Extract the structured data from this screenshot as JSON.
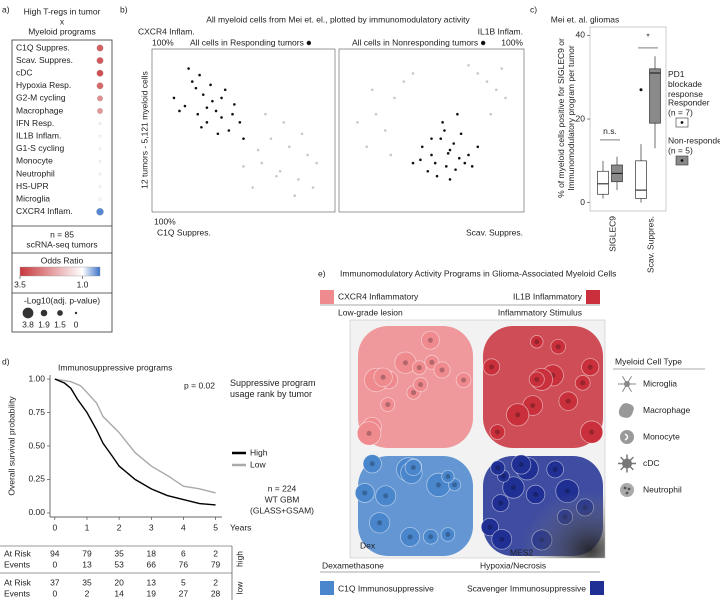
{
  "panel_labels": [
    "a)",
    "b)",
    "c)",
    "d)",
    "e)"
  ],
  "chart_data": [
    {
      "type": "dot",
      "title": [
        "High T-regs in tumor",
        "x",
        "Myeloid programs"
      ],
      "categories": [
        "C1Q Suppres.",
        "Scav. Suppres.",
        "cDC",
        "Hypoxia Resp.",
        "G2-M cycling",
        "Macrophage",
        "IFN Resp.",
        "IL1B Inflam.",
        "G1-S cycling",
        "Monocyte",
        "Neutrophil",
        "HS-UPR",
        "Microglia",
        "CXCR4 Inflam."
      ],
      "values": [
        3.0,
        3.1,
        3.2,
        2.9,
        2.4,
        2.3,
        1.1,
        1.0,
        1.0,
        1.0,
        1.0,
        1.0,
        1.0,
        0.4
      ],
      "sizes": [
        1.9,
        1.9,
        1.9,
        1.9,
        1.5,
        1.5,
        0,
        0,
        0,
        0,
        0,
        0,
        0,
        2.2
      ],
      "annotations": [
        "n = 85",
        "scRNA-seq tumors"
      ],
      "colorbar_title": "Odds Ratio",
      "clim": [
        0.3,
        3.5
      ],
      "colorbar_ticks": [
        3.5,
        {
          "value": 1,
          "label": "1.0"
        }
      ],
      "colorbar_colors": [
        "#c8383c",
        "#ffffff",
        "#3b73c9"
      ],
      "size_title": "-Log10(adj. p-value)",
      "size_ticks": [
        3.8,
        1.9,
        1.5,
        0
      ]
    },
    {
      "type": "scatter",
      "title": "All myeloid cells from Mei et. el., plotted by immunomodulatory activity",
      "y_label": "12 tumors - 5,121 myeloid cells",
      "y_label_top": "CXCR4 Inflam.",
      "y_max_label": "100%",
      "x_label": "C1Q Suppres.",
      "x_max_label": "100%",
      "annotation": "All cells in Responding tumors",
      "xlim": [
        0,
        100
      ],
      "ylim": [
        0,
        100
      ],
      "series": [
        {
          "color": "#c8c8c8",
          "x": [
            60,
            70,
            75,
            80,
            65,
            85,
            55,
            90,
            72,
            62,
            78,
            68,
            58,
            82,
            88,
            50
          ],
          "values": [
            30,
            25,
            40,
            20,
            45,
            35,
            15,
            30,
            55,
            60,
            10,
            22,
            38,
            48,
            15,
            28
          ]
        },
        {
          "color": "#111111",
          "x": [
            12,
            18,
            22,
            25,
            28,
            30,
            33,
            35,
            38,
            40,
            42,
            45,
            20,
            27,
            32,
            36,
            44,
            48,
            15,
            24,
            30,
            38,
            50,
            26
          ],
          "values": [
            70,
            65,
            80,
            60,
            72,
            55,
            68,
            62,
            58,
            75,
            50,
            66,
            88,
            52,
            78,
            48,
            60,
            55,
            62,
            76,
            64,
            70,
            45,
            84
          ]
        }
      ]
    },
    {
      "type": "scatter",
      "y_label_top": "IL1B Inflam.",
      "y_max_label": "100%",
      "x_label": "Scav. Suppres.",
      "annotation": "All cells in Nonresponding tumors",
      "xlim": [
        0,
        100
      ],
      "ylim": [
        0,
        100
      ],
      "series": [
        {
          "color": "#c8c8c8",
          "x": [
            20,
            30,
            25,
            80,
            85,
            75,
            15,
            35,
            90,
            70,
            10,
            28,
            82,
            40,
            18,
            88
          ],
          "values": [
            60,
            70,
            50,
            80,
            75,
            85,
            40,
            80,
            70,
            90,
            55,
            35,
            60,
            85,
            75,
            88
          ]
        },
        {
          "color": "#111111",
          "x": [
            45,
            50,
            55,
            60,
            52,
            58,
            62,
            65,
            48,
            57,
            70,
            53,
            66,
            44,
            60,
            75,
            56,
            63,
            68,
            50,
            59,
            72,
            40,
            64
          ],
          "values": [
            40,
            35,
            45,
            38,
            30,
            28,
            42,
            33,
            25,
            50,
            35,
            22,
            48,
            32,
            20,
            40,
            55,
            26,
            30,
            45,
            36,
            28,
            30,
            60
          ]
        }
      ]
    },
    {
      "type": "box",
      "title": "Mei et. al. gliomas",
      "y_label": "% of myeloid cells positive for SIGLEC9 or Immunomodulatory program per tumor",
      "ylim": [
        -2,
        42
      ],
      "yticks": [
        0,
        20,
        40
      ],
      "categories": [
        "SIGLEC9",
        "Scav. Suppres."
      ],
      "series": [
        {
          "name": "Responder",
          "color": "#ffffff",
          "min": [
            1,
            0
          ],
          "q1": [
            2,
            1
          ],
          "median": [
            4.5,
            3
          ],
          "q3": [
            7.5,
            10
          ],
          "max": [
            10,
            14
          ],
          "outliers": [
            [],
            [
              27
            ]
          ]
        },
        {
          "name": "Non-responder",
          "color": "#8a8a8a",
          "min": [
            3,
            13
          ],
          "q1": [
            5,
            19
          ],
          "median": [
            7,
            31
          ],
          "q3": [
            9,
            32
          ],
          "max": [
            11,
            35
          ],
          "outliers": [
            [],
            []
          ]
        }
      ],
      "annotations": [
        "n.s.",
        "*"
      ],
      "legend_title": "PD1 blockade response",
      "legend_notes": [
        "(n = 7)",
        "(n = 5)"
      ]
    },
    {
      "type": "line",
      "title": "Immunosuppressive programs",
      "annotation": "p = 0.02",
      "legend_title": "Suppressive program usage rank by tumor",
      "notes": [
        "n = 224",
        "WT GBM",
        "(GLASS+GSAM)"
      ],
      "y_label": "Overall survival probability",
      "x_label": "Years",
      "xlim": [
        -0.15,
        5.2
      ],
      "ylim": [
        -0.03,
        1.03
      ],
      "xticks": [
        0,
        1,
        2,
        3,
        4,
        5
      ],
      "yticks": [
        {
          "value": 0,
          "label": "0.00"
        },
        {
          "value": 0.25,
          "label": "0.25"
        },
        {
          "value": 0.5,
          "label": "0.50"
        },
        {
          "value": 0.75,
          "label": "0.75"
        },
        {
          "value": 1,
          "label": "1.00"
        }
      ],
      "series": [
        {
          "name": "High",
          "color": "#000000",
          "x": [
            0,
            0.3,
            0.5,
            0.7,
            1,
            1.3,
            1.5,
            1.8,
            2,
            2.5,
            3,
            3.5,
            4,
            4.5,
            5
          ],
          "values": [
            1,
            0.97,
            0.93,
            0.85,
            0.75,
            0.62,
            0.52,
            0.42,
            0.35,
            0.25,
            0.18,
            0.13,
            0.1,
            0.07,
            0.06
          ]
        },
        {
          "name": "Low",
          "color": "#aaaaaa",
          "x": [
            0,
            0.5,
            0.8,
            1,
            1.3,
            1.5,
            2,
            2.5,
            3,
            3.5,
            4,
            4.5,
            5
          ],
          "values": [
            1,
            0.98,
            0.95,
            0.9,
            0.82,
            0.72,
            0.6,
            0.45,
            0.35,
            0.28,
            0.2,
            0.18,
            0.15
          ]
        }
      ],
      "risk_table": {
        "row_labels": [
          "At Risk",
          "Events"
        ],
        "groups": [
          {
            "label": "high",
            "at_risk": [
              94,
              79,
              35,
              18,
              6,
              2
            ],
            "events": [
              0,
              13,
              53,
              66,
              76,
              79
            ]
          },
          {
            "label": "low",
            "at_risk": [
              37,
              35,
              20,
              13,
              5,
              2
            ],
            "events": [
              0,
              2,
              14,
              19,
              27,
              28
            ]
          }
        ]
      }
    }
  ],
  "diagram": {
    "title": "Immunomodulatory Activity Programs in Glioma-Associated Myeloid Cells",
    "programs": [
      {
        "name": "CXCR4 Inflammatory",
        "context": "Low-grade lesion",
        "color": "#ef8a8e"
      },
      {
        "name": "IL1B Inflammatory",
        "context": "Inflammatory Stimulus",
        "color": "#c9303b"
      },
      {
        "name": "C1Q Immunosuppressive",
        "context": "Dexamethasone",
        "color": "#4a86cc"
      },
      {
        "name": "Scavenger Immunosuppressive",
        "context": "Hypoxia/Necrosis",
        "color": "#1f2f93"
      }
    ],
    "inner_labels": [
      "Dex",
      "MES2"
    ],
    "legend_title": "Myeloid Cell Type",
    "cell_types": [
      "Microglia",
      "Macrophage",
      "Monocyte",
      "cDC",
      "Neutrophil"
    ]
  }
}
